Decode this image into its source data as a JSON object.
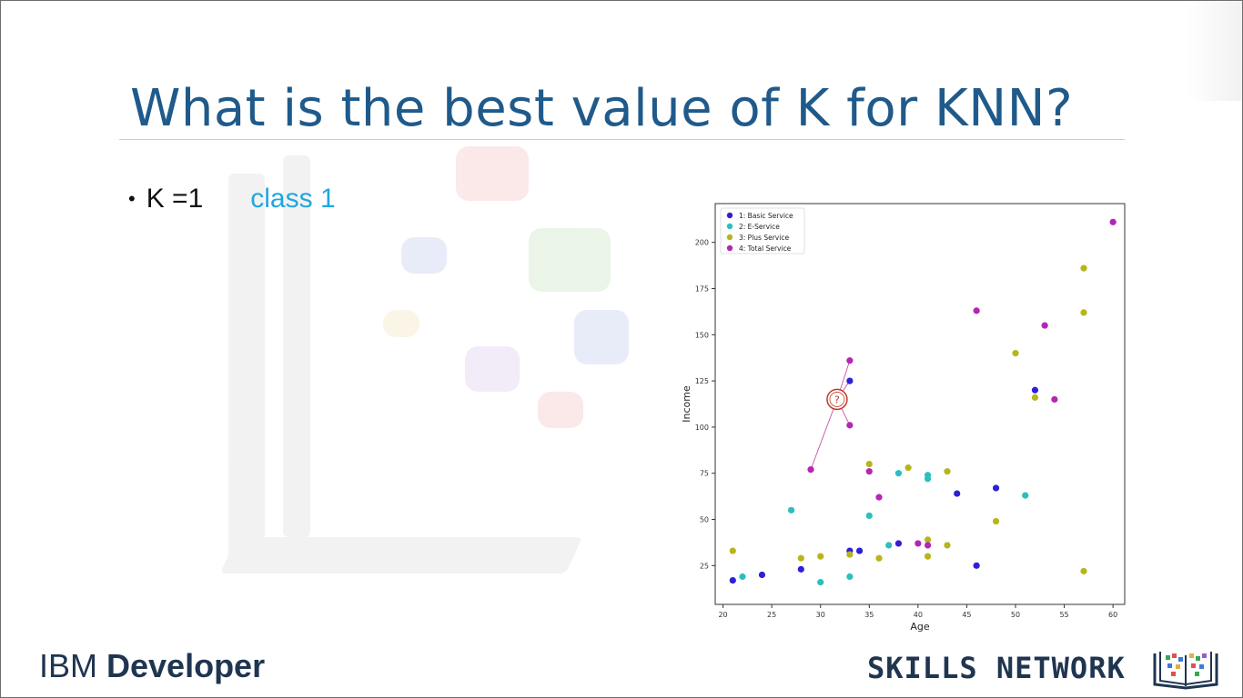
{
  "slide": {
    "title": "What is the best value of K for KNN?",
    "bullet": {
      "label": "K =1",
      "result": "class 1",
      "result_color": "#20a6e0"
    }
  },
  "branding": {
    "ibm_part1": "IBM ",
    "ibm_part2": "Developer",
    "skills_network": "SKILLS NETWORK",
    "text_color": "#1f3550"
  },
  "chart_data": {
    "type": "scatter",
    "title": "",
    "xlabel": "Age",
    "ylabel": "Income",
    "xlim": [
      19.2,
      61.2
    ],
    "ylim": [
      4,
      221
    ],
    "x_ticks": [
      20,
      25,
      30,
      35,
      40,
      45,
      50,
      55,
      60
    ],
    "y_ticks": [
      25,
      50,
      75,
      100,
      125,
      150,
      175,
      200
    ],
    "grid": false,
    "legend": "top-left",
    "series": [
      {
        "name": "1: Basic Service",
        "color": "#2f1fd6",
        "points": [
          [
            21,
            17
          ],
          [
            24,
            20
          ],
          [
            28,
            23
          ],
          [
            33,
            33
          ],
          [
            33,
            125
          ],
          [
            34,
            33
          ],
          [
            38,
            37
          ],
          [
            44,
            64
          ],
          [
            46,
            25
          ],
          [
            48,
            67
          ],
          [
            52,
            120
          ]
        ]
      },
      {
        "name": "2: E-Service",
        "color": "#2bbfbf",
        "points": [
          [
            22,
            19
          ],
          [
            27,
            55
          ],
          [
            30,
            16
          ],
          [
            33,
            19
          ],
          [
            35,
            52
          ],
          [
            37,
            36
          ],
          [
            38,
            75
          ],
          [
            41,
            74
          ],
          [
            41,
            72
          ],
          [
            51,
            63
          ]
        ]
      },
      {
        "name": "3: Plus Service",
        "color": "#b8b51b",
        "points": [
          [
            21,
            33
          ],
          [
            28,
            29
          ],
          [
            30,
            30
          ],
          [
            33,
            31
          ],
          [
            35,
            80
          ],
          [
            36,
            29
          ],
          [
            39,
            78
          ],
          [
            41,
            30
          ],
          [
            41,
            39
          ],
          [
            43,
            36
          ],
          [
            43,
            76
          ],
          [
            48,
            49
          ],
          [
            50,
            140
          ],
          [
            52,
            116
          ],
          [
            57,
            186
          ],
          [
            57,
            162
          ],
          [
            57,
            22
          ]
        ]
      },
      {
        "name": "4: Total Service",
        "color": "#b426b4",
        "points": [
          [
            29,
            77
          ],
          [
            33,
            136
          ],
          [
            33,
            101
          ],
          [
            35,
            76
          ],
          [
            36,
            62
          ],
          [
            40,
            37
          ],
          [
            41,
            36
          ],
          [
            46,
            163
          ],
          [
            53,
            155
          ],
          [
            54,
            115
          ],
          [
            60,
            211
          ]
        ]
      }
    ],
    "annotation": {
      "text": "?",
      "point": [
        31.7,
        115
      ],
      "color": "#c0392b",
      "lines_to": [
        [
          33,
          136
        ],
        [
          33,
          125
        ],
        [
          33,
          101
        ],
        [
          29,
          77
        ]
      ],
      "line_color": "#c0409a"
    }
  }
}
